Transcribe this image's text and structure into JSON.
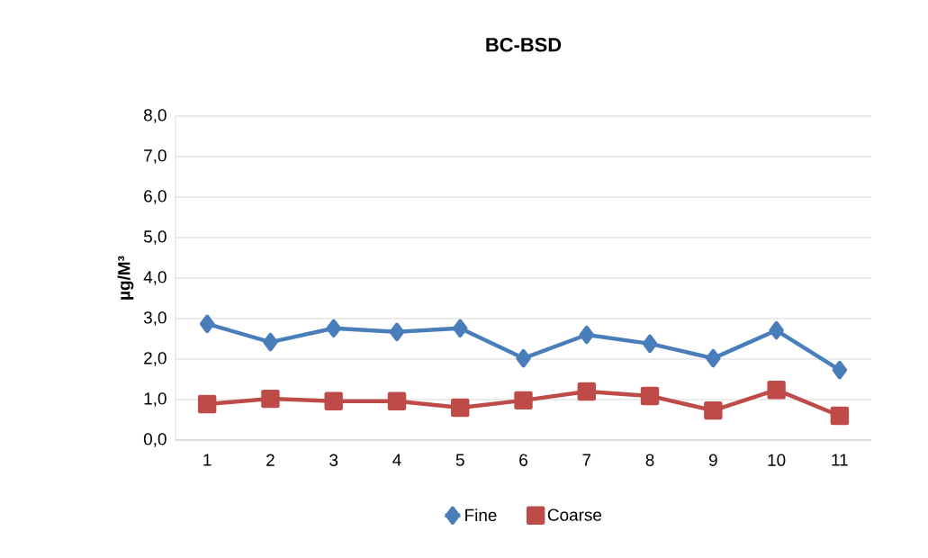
{
  "chart_data": {
    "type": "line",
    "title": "BC-BSD",
    "ylabel": "µg/M³",
    "categories": [
      "1",
      "2",
      "3",
      "4",
      "5",
      "6",
      "7",
      "8",
      "9",
      "10",
      "11"
    ],
    "series": [
      {
        "name": "Fine",
        "color": "#4a7ebb",
        "marker": "diamond",
        "values": [
          2.87,
          2.42,
          2.76,
          2.67,
          2.76,
          2.02,
          2.6,
          2.38,
          2.02,
          2.71,
          1.73
        ]
      },
      {
        "name": "Coarse",
        "color": "#be4b48",
        "marker": "square",
        "values": [
          0.89,
          1.02,
          0.96,
          0.96,
          0.8,
          0.98,
          1.2,
          1.09,
          0.73,
          1.24,
          0.6
        ]
      }
    ],
    "ylim": [
      0,
      8
    ],
    "yticks": [
      {
        "value": 0,
        "label": "0,0"
      },
      {
        "value": 1,
        "label": "1,0"
      },
      {
        "value": 2,
        "label": "2,0"
      },
      {
        "value": 3,
        "label": "3,0"
      },
      {
        "value": 4,
        "label": "4,0"
      },
      {
        "value": 5,
        "label": "5,0"
      },
      {
        "value": 6,
        "label": "6,0"
      },
      {
        "value": 7,
        "label": "7,0"
      },
      {
        "value": 8,
        "label": "8,0"
      }
    ],
    "grid": "y",
    "legend": "bottom",
    "line_style": "solid"
  }
}
